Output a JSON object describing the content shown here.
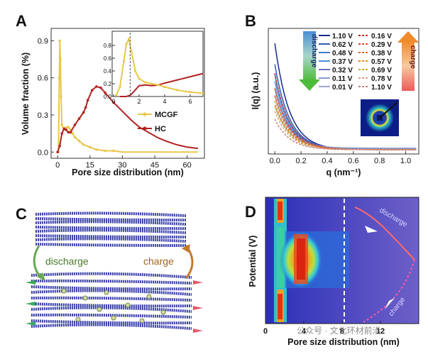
{
  "panels": {
    "A": {
      "label": "A"
    },
    "B": {
      "label": "B"
    },
    "C": {
      "label": "C",
      "discharge": "discharge",
      "charge": "charge"
    },
    "D": {
      "label": "D"
    }
  },
  "watermark": "公众号 · 文化环材前沿",
  "colors": {
    "mcgf": "#e8c84a",
    "hc": "#b22222"
  },
  "chart_data": [
    {
      "id": "A",
      "type": "line",
      "xlabel": "Pore size distribution (nm)",
      "ylabel": "Volume fraction (%)",
      "xlim": [
        -3,
        68
      ],
      "ylim": [
        -0.05,
        1.0
      ],
      "xticks": [
        0,
        15,
        30,
        45,
        60
      ],
      "yticks": [
        0.0,
        0.3,
        0.6,
        0.9
      ],
      "series": [
        {
          "name": "MCGF",
          "x": [
            0.4,
            0.8,
            1.0,
            1.3,
            1.6,
            2.0,
            3,
            4,
            5,
            6,
            7,
            8,
            10,
            12,
            15,
            18,
            22,
            26,
            30,
            34,
            38,
            42,
            46,
            50,
            55,
            60,
            65
          ],
          "y": [
            0.0,
            0.6,
            0.9,
            0.75,
            0.45,
            0.22,
            0.18,
            0.2,
            0.2,
            0.18,
            0.15,
            0.12,
            0.09,
            0.06,
            0.04,
            0.02,
            0.01,
            0.01,
            0.0,
            0.0,
            0.0,
            0.0,
            0.0,
            0.0,
            0.0,
            0.0,
            0.0
          ]
        },
        {
          "name": "HC",
          "x": [
            0,
            1,
            2,
            3,
            4,
            5,
            6,
            8,
            10,
            12,
            13,
            14,
            16,
            18,
            20,
            22,
            26,
            30,
            34,
            38,
            42,
            46,
            50,
            55,
            60,
            65
          ],
          "y": [
            0.0,
            0.05,
            0.15,
            0.19,
            0.18,
            0.16,
            0.16,
            0.22,
            0.27,
            0.32,
            0.36,
            0.42,
            0.5,
            0.53,
            0.52,
            0.48,
            0.4,
            0.33,
            0.26,
            0.2,
            0.16,
            0.12,
            0.09,
            0.06,
            0.04,
            0.03
          ]
        }
      ],
      "inset": {
        "xlim": [
          0,
          7
        ],
        "ylim": [
          0,
          1.0
        ],
        "xticks": [
          0,
          2,
          4,
          6
        ],
        "yticks": [
          0.0,
          0.2,
          0.4,
          0.6,
          0.8
        ]
      }
    },
    {
      "id": "B",
      "type": "line",
      "xlabel": "q (nm⁻¹)",
      "ylabel": "I(q) (a.u.)",
      "xlim": [
        -0.05,
        1.1
      ],
      "xticks": [
        0.0,
        0.2,
        0.4,
        0.6,
        0.8,
        1.0
      ],
      "legend": {
        "discharge": [
          "1.10 V",
          "0.62 V",
          "0.48 V",
          "0.37 V",
          "0.32 V",
          "0.11 V",
          "0.01 V"
        ],
        "charge": [
          "0.16 V",
          "0.29 V",
          "0.38 V",
          "0.57 V",
          "0.69 V",
          "0.78 V",
          "1.10 V"
        ]
      },
      "arrow_discharge": "discharge",
      "arrow_charge": "charge"
    },
    {
      "id": "D",
      "type": "heatmap",
      "xlabel": "Pore size distribution (nm)",
      "ylabel": "Potential (V)",
      "xticks": [
        0,
        4,
        8,
        12
      ],
      "discharge": "discharge",
      "charge": "charge"
    }
  ]
}
